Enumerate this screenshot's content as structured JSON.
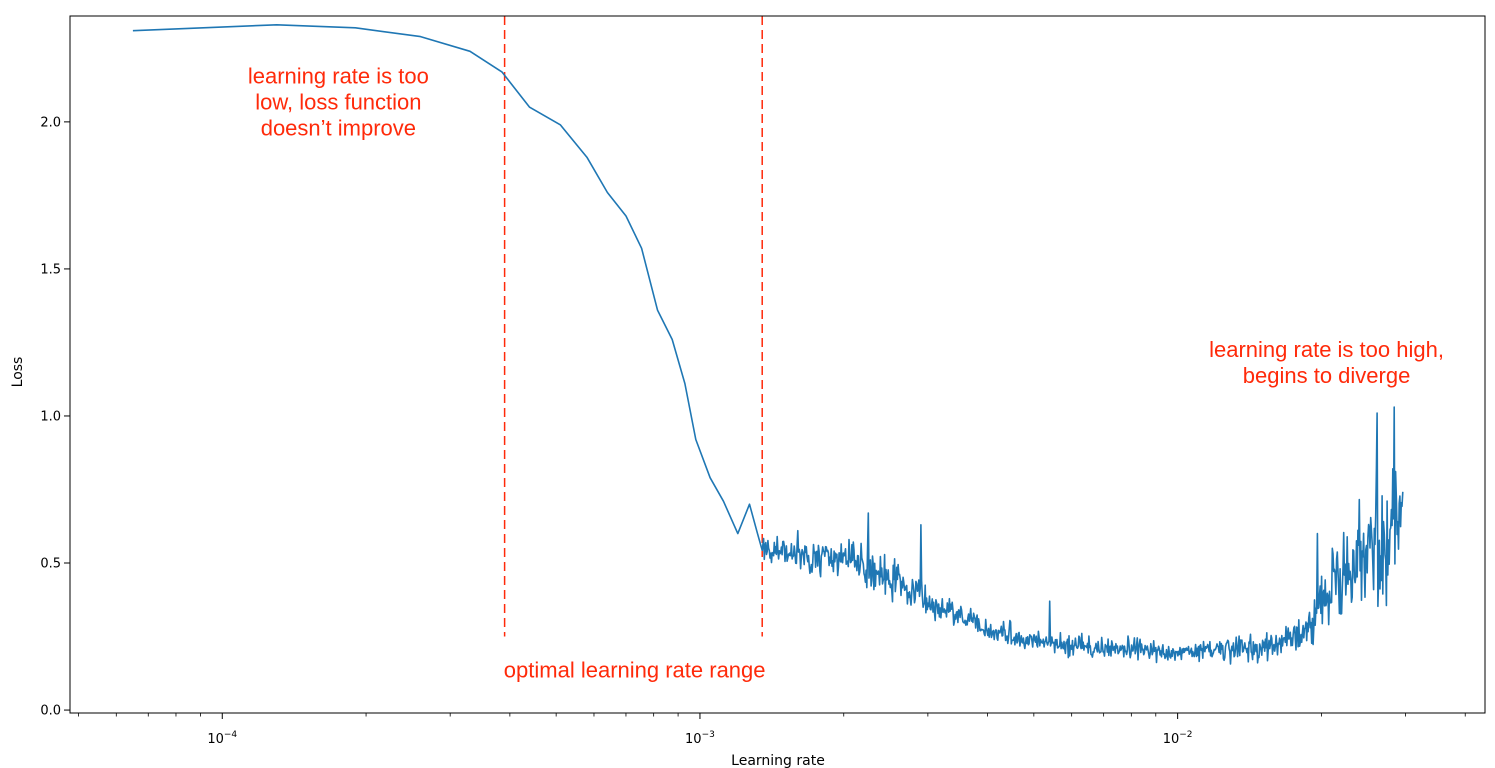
{
  "chart_data": {
    "type": "line",
    "title": "",
    "xlabel": "Learning rate",
    "ylabel": "Loss",
    "xscale": "log",
    "xlim": [
      4.8e-05,
      0.044
    ],
    "ylim": [
      -0.01,
      2.36
    ],
    "grid": false,
    "legend": "none",
    "line_color": "#1f77b4",
    "x_ticks": [
      {
        "value": 0.0001,
        "base": "10",
        "exp": "−4"
      },
      {
        "value": 0.001,
        "base": "10",
        "exp": "−3"
      },
      {
        "value": 0.01,
        "base": "10",
        "exp": "−2"
      }
    ],
    "y_ticks": [
      {
        "value": 0.0,
        "label": "0.0"
      },
      {
        "value": 0.5,
        "label": "0.5"
      },
      {
        "value": 1.0,
        "label": "1.0"
      },
      {
        "value": 1.5,
        "label": "1.5"
      },
      {
        "value": 2.0,
        "label": "2.0"
      }
    ],
    "reference_lines": [
      {
        "x": 0.00039,
        "y_from": 0.25,
        "y_to": 2.36,
        "color": "#ff2a0a",
        "style": "dashed"
      },
      {
        "x": 0.00135,
        "y_from": 0.25,
        "y_to": 2.36,
        "color": "#ff2a0a",
        "style": "dashed"
      }
    ],
    "annotations": [
      {
        "lines": [
          "learning rate is too",
          "low, loss function",
          "doesn’t improve"
        ],
        "x": 0.000175,
        "y": 2.13,
        "color": "#ff2a0a"
      },
      {
        "lines": [
          "optimal learning rate range"
        ],
        "x": 0.00073,
        "y": 0.11,
        "color": "#ff2a0a"
      },
      {
        "lines": [
          "learning rate is too high,",
          "begins to diverge"
        ],
        "x": 0.0205,
        "y": 1.2,
        "color": "#ff2a0a"
      }
    ],
    "series": [
      {
        "smooth": {
          "x": [
            6.5e-05,
            0.00013,
            0.00019,
            0.00026,
            0.00033,
            0.000385,
            0.00044,
            0.00051,
            0.00058,
            0.00064,
            0.0007,
            0.000755,
            0.000815,
            0.000875,
            0.00093,
            0.00098,
            0.00105,
            0.00112,
            0.0012,
            0.00127,
            0.00132
          ],
          "y": [
            2.31,
            2.33,
            2.32,
            2.29,
            2.24,
            2.17,
            2.05,
            1.99,
            1.88,
            1.76,
            1.68,
            1.57,
            1.36,
            1.26,
            1.11,
            0.92,
            0.79,
            0.71,
            0.6,
            0.7,
            0.6
          ]
        },
        "noisy": {
          "x_start": 0.00135,
          "x_end": 0.0296,
          "anchors": [
            {
              "x": 0.00135,
              "y": 0.55,
              "amp": 0.04
            },
            {
              "x": 0.0017,
              "y": 0.52,
              "amp": 0.08
            },
            {
              "x": 0.0022,
              "y": 0.5,
              "amp": 0.1
            },
            {
              "x": 0.0027,
              "y": 0.42,
              "amp": 0.08
            },
            {
              "x": 0.0032,
              "y": 0.34,
              "amp": 0.06
            },
            {
              "x": 0.0042,
              "y": 0.26,
              "amp": 0.05
            },
            {
              "x": 0.006,
              "y": 0.22,
              "amp": 0.05
            },
            {
              "x": 0.009,
              "y": 0.2,
              "amp": 0.05
            },
            {
              "x": 0.012,
              "y": 0.2,
              "amp": 0.05
            },
            {
              "x": 0.016,
              "y": 0.22,
              "amp": 0.06
            },
            {
              "x": 0.019,
              "y": 0.27,
              "amp": 0.09
            },
            {
              "x": 0.021,
              "y": 0.42,
              "amp": 0.18
            },
            {
              "x": 0.025,
              "y": 0.53,
              "amp": 0.27
            },
            {
              "x": 0.0296,
              "y": 0.65,
              "amp": 0.3
            }
          ],
          "spikes": [
            {
              "x": 0.00145,
              "y": 0.59
            },
            {
              "x": 0.0016,
              "y": 0.61
            },
            {
              "x": 0.00205,
              "y": 0.58
            },
            {
              "x": 0.00225,
              "y": 0.67
            },
            {
              "x": 0.0029,
              "y": 0.63
            },
            {
              "x": 0.0054,
              "y": 0.37
            },
            {
              "x": 0.0196,
              "y": 0.6
            },
            {
              "x": 0.0262,
              "y": 1.01
            },
            {
              "x": 0.0284,
              "y": 1.03
            }
          ]
        }
      }
    ]
  }
}
